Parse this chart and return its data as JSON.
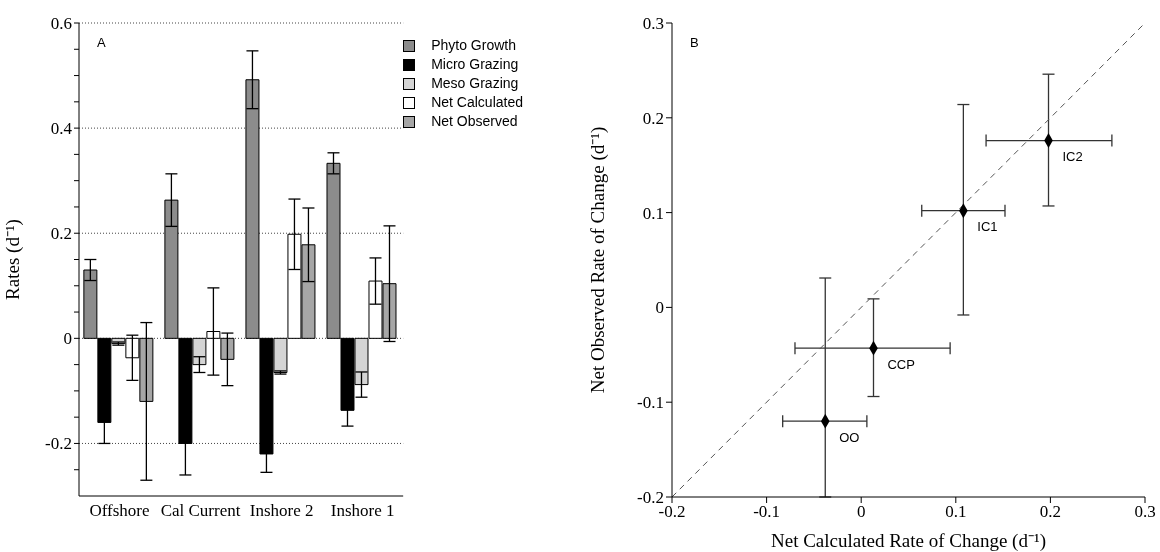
{
  "chart_data": [
    {
      "type": "bar",
      "annotations": [
        "A"
      ],
      "ylabel": "Rates (d⁻¹)",
      "categories": [
        "Offshore",
        "Cal Current",
        "Inshore 2",
        "Inshore 1"
      ],
      "series": [
        {
          "name": "Phyto Growth",
          "color": "#8c8c8c",
          "values": [
            0.13,
            0.263,
            0.492,
            0.333
          ],
          "errors": [
            0.02,
            0.05,
            0.055,
            0.02
          ]
        },
        {
          "name": "Micro Grazing",
          "color": "#000000",
          "values": [
            -0.16,
            -0.2,
            -0.22,
            -0.137
          ],
          "errors": [
            0.04,
            0.06,
            0.035,
            0.03
          ]
        },
        {
          "name": "Meso Grazing",
          "color": "#d4d4d4",
          "values": [
            -0.01,
            -0.05,
            -0.065,
            -0.088
          ],
          "errors": [
            0.003,
            0.015,
            0.003,
            0.024
          ]
        },
        {
          "name": "Net Calculated",
          "color": "#ffffff",
          "values": [
            -0.037,
            0.013,
            0.198,
            0.109
          ],
          "errors": [
            0.043,
            0.083,
            0.067,
            0.044
          ]
        },
        {
          "name": "Net Observed",
          "color": "#a6a6a6",
          "values": [
            -0.12,
            -0.04,
            0.178,
            0.104
          ],
          "errors": [
            0.15,
            0.05,
            0.07,
            0.11
          ]
        }
      ],
      "ylim": [
        -0.3,
        0.6
      ],
      "yticks": [
        -0.2,
        {
          "value": -0.25,
          "label": null
        },
        {
          "value": -0.15,
          "label": null
        },
        {
          "value": -0.1,
          "label": null
        },
        {
          "value": -0.05,
          "label": null
        },
        0,
        {
          "value": 0.05,
          "label": null
        },
        {
          "value": 0.1,
          "label": null
        },
        {
          "value": 0.15,
          "label": null
        },
        0.2,
        {
          "value": 0.25,
          "label": null
        },
        {
          "value": 0.3,
          "label": null
        },
        {
          "value": 0.35,
          "label": null
        },
        0.4,
        {
          "value": 0.45,
          "label": null
        },
        {
          "value": 0.5,
          "label": null
        },
        {
          "value": 0.55,
          "label": null
        },
        0.6
      ],
      "grid": "y",
      "legend": "top right"
    },
    {
      "type": "scatter",
      "annotations": [
        "B",
        {
          "text": "OO",
          "x": -0.038,
          "y": -0.12
        },
        {
          "text": "CCP",
          "x": 0.013,
          "y": -0.043
        },
        {
          "text": "IC1",
          "x": 0.108,
          "y": 0.102
        },
        {
          "text": "IC2",
          "x": 0.198,
          "y": 0.176
        }
      ],
      "xlabel": "Net Calculated Rate of Change (d⁻¹)",
      "ylabel": "Net Observed Rate of Change (d⁻¹)",
      "series": [
        {
          "type": "scatter",
          "color": "#000000",
          "marker": "diamond",
          "x": [
            -0.038,
            0.013,
            0.108,
            0.198
          ],
          "values": [
            -0.12,
            -0.043,
            0.102,
            0.176
          ],
          "errors": [
            [
              -0.2,
              0.031
            ],
            [
              -0.094,
              0.009
            ],
            [
              -0.008,
              0.214
            ],
            [
              0.107,
              0.246
            ]
          ],
          "xerrors": [
            [
              -0.083,
              0.006
            ],
            [
              -0.07,
              0.094
            ],
            [
              0.064,
              0.152
            ],
            [
              0.132,
              0.265
            ]
          ]
        },
        {
          "type": "line",
          "color": "#555555",
          "line_style": "dashed",
          "x": [
            -0.2,
            0.3
          ],
          "values": [
            -0.2,
            0.3
          ]
        }
      ],
      "xlim": [
        -0.2,
        0.3
      ],
      "ylim": [
        -0.2,
        0.3
      ],
      "xticks": [
        -0.2,
        -0.1,
        0,
        0.1,
        0.2,
        0.3
      ],
      "yticks": [
        -0.2,
        -0.1,
        0,
        0.1,
        0.2,
        0.3
      ]
    }
  ]
}
